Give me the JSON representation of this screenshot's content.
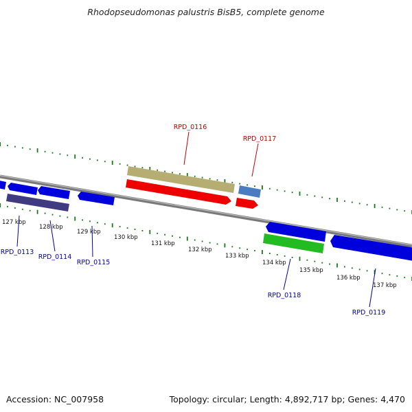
{
  "header": {
    "title": "Rhodopseudomonas palustris BisB5, complete genome"
  },
  "footer": {
    "accession": "Accession: NC_007958",
    "topology": "Topology: circular; Length: 4,892,717 bp; Genes: 4,470"
  },
  "axis": {
    "ticks": [
      "127 kbp",
      "128 kbp",
      "129 kbp",
      "130 kbp",
      "131 kbp",
      "132 kbp",
      "133 kbp",
      "134 kbp",
      "135 kbp",
      "136 kbp",
      "137 kbp"
    ]
  },
  "genes": [
    {
      "name": "RPD_0116",
      "color": "#c00000"
    },
    {
      "name": "RPD_0117",
      "color": "#c00000"
    },
    {
      "name": "RPD_0113",
      "color": "#00009a"
    },
    {
      "name": "RPD_0114",
      "color": "#00009a"
    },
    {
      "name": "RPD_0115",
      "color": "#00009a"
    },
    {
      "name": "RPD_0118",
      "color": "#00009a"
    },
    {
      "name": "RPD_0119",
      "color": "#00009a"
    }
  ],
  "colors": {
    "forward_gene": "#ee0000",
    "reverse_gene": "#0000dd",
    "pseudo_gene": "#403a80",
    "olive_feature": "#b5ad72",
    "steelblue_feature": "#4a7cc0",
    "green_feature": "#22bb22",
    "tick_marks": "#1a7a1a",
    "backbone": "#7a7a7a"
  }
}
